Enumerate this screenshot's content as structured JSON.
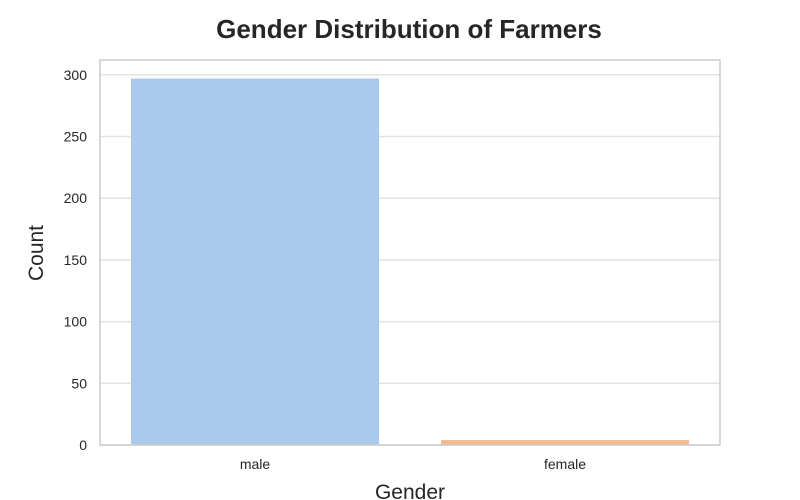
{
  "chart_data": {
    "type": "bar",
    "title": "Gender Distribution of Farmers",
    "xlabel": "Gender",
    "ylabel": "Count",
    "categories": [
      "male",
      "female"
    ],
    "values": [
      297,
      4
    ],
    "ylim": [
      0,
      312
    ],
    "yticks": [
      0,
      50,
      100,
      150,
      200,
      250,
      300
    ],
    "grid": true,
    "colors": [
      "#abc9ec",
      "#f6b891"
    ],
    "grid_color": "#e3e3e3",
    "frame_color": "#cccccc",
    "text_color": "#262626"
  }
}
